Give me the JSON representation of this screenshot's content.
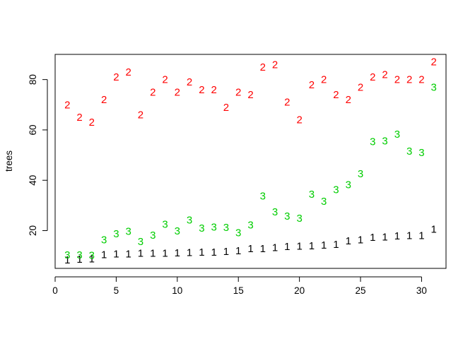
{
  "chart_data": {
    "type": "scatter",
    "title": "",
    "xlabel": "",
    "ylabel": "trees",
    "xlim": [
      0,
      32
    ],
    "ylim": [
      5,
      90
    ],
    "x_ticks": [
      0,
      5,
      10,
      15,
      20,
      25,
      30
    ],
    "y_ticks": [
      20,
      40,
      60,
      80
    ],
    "grid": false,
    "legend": "none",
    "marker": "series symbol digits",
    "x": [
      1,
      2,
      3,
      4,
      5,
      6,
      7,
      8,
      9,
      10,
      11,
      12,
      13,
      14,
      15,
      16,
      17,
      18,
      19,
      20,
      21,
      22,
      23,
      24,
      25,
      26,
      27,
      28,
      29,
      30,
      31
    ],
    "series": [
      {
        "symbol": "1",
        "color": "#000000",
        "values": [
          8.3,
          8.6,
          8.8,
          10.5,
          10.7,
          10.8,
          11.0,
          11.0,
          11.1,
          11.2,
          11.3,
          11.4,
          11.4,
          11.7,
          12.0,
          12.9,
          12.9,
          13.3,
          13.7,
          13.8,
          14.0,
          14.2,
          14.5,
          16.0,
          16.3,
          17.3,
          17.5,
          17.9,
          18.0,
          18.0,
          20.6
        ]
      },
      {
        "symbol": "2",
        "color": "#ff0000",
        "values": [
          70,
          65,
          63,
          72,
          81,
          83,
          66,
          75,
          80,
          75,
          79,
          76,
          76,
          69,
          75,
          74,
          85,
          86,
          71,
          64,
          78,
          80,
          74,
          72,
          77,
          81,
          82,
          80,
          80,
          80,
          87
        ]
      },
      {
        "symbol": "3",
        "color": "#00cd00",
        "values": [
          10.3,
          10.3,
          10.2,
          16.4,
          18.8,
          19.7,
          15.6,
          18.2,
          22.6,
          19.9,
          24.2,
          21.0,
          21.4,
          21.3,
          19.1,
          22.2,
          33.8,
          27.4,
          25.7,
          24.9,
          34.5,
          31.7,
          36.3,
          38.3,
          42.6,
          55.4,
          55.7,
          58.3,
          51.5,
          51.0,
          77.0
        ]
      }
    ]
  }
}
